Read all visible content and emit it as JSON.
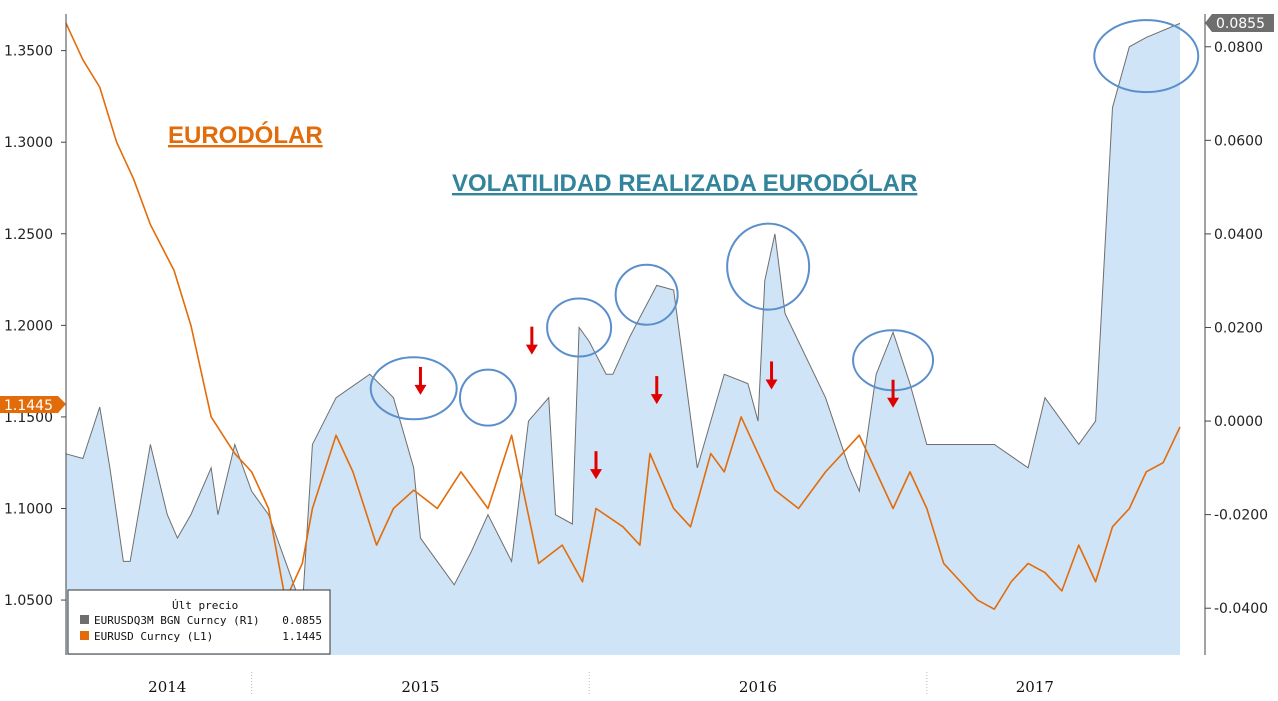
{
  "chart_data": {
    "type": "line",
    "x_ticks": [
      "2014",
      "2015",
      "2016",
      "2017"
    ],
    "left_axis": {
      "ticks": [
        "1.3500",
        "1.3000",
        "1.2500",
        "1.2000",
        "1.1500",
        "1.1000",
        "1.0500"
      ],
      "range": [
        1.02,
        1.37
      ]
    },
    "right_axis": {
      "ticks": [
        "0.0800",
        "0.0600",
        "0.0400",
        "0.0200",
        "0.0000",
        "-0.0200",
        "-0.0400"
      ],
      "range": [
        -0.05,
        0.087
      ]
    },
    "annotations": {
      "eurusd_title": "EURODÓLAR",
      "vol_title": "VOLATILIDAD REALIZADA EURODÓLAR"
    },
    "legend": {
      "header": "Últ precio",
      "rows": [
        {
          "label": "EURUSDQ3M BGN Curncy  (R1)",
          "value": "0.0855",
          "color": "#6e6e6e"
        },
        {
          "label": "EURUSD Curncy  (L1)",
          "value": "1.1445",
          "color": "#e36c0a"
        }
      ]
    },
    "last_value_tags": {
      "eurusd": "1.1445",
      "vol": "0.0855"
    },
    "series": [
      {
        "name": "EURUSD Curncy",
        "axis": "left",
        "color": "#e36c0a",
        "x": [
          2013.95,
          2014.0,
          2014.05,
          2014.1,
          2014.15,
          2014.2,
          2014.27,
          2014.32,
          2014.38,
          2014.45,
          2014.5,
          2014.55,
          2014.6,
          2014.65,
          2014.68,
          2014.75,
          2014.8,
          2014.87,
          2014.92,
          2014.98,
          2015.05,
          2015.12,
          2015.2,
          2015.27,
          2015.35,
          2015.42,
          2015.48,
          2015.52,
          2015.6,
          2015.65,
          2015.68,
          2015.75,
          2015.8,
          2015.86,
          2015.9,
          2015.95,
          2016.0,
          2016.05,
          2016.12,
          2016.2,
          2016.25,
          2016.3,
          2016.35,
          2016.4,
          2016.45,
          2016.5,
          2016.55,
          2016.6,
          2016.65,
          2016.7,
          2016.75,
          2016.8,
          2016.85,
          2016.9,
          2016.95,
          2017.0,
          2017.05,
          2017.1,
          2017.15,
          2017.2,
          2017.25
        ],
        "y": [
          1.365,
          1.345,
          1.33,
          1.3,
          1.28,
          1.255,
          1.23,
          1.2,
          1.15,
          1.13,
          1.12,
          1.1,
          1.05,
          1.07,
          1.1,
          1.14,
          1.12,
          1.08,
          1.1,
          1.11,
          1.1,
          1.12,
          1.1,
          1.14,
          1.07,
          1.08,
          1.06,
          1.1,
          1.09,
          1.08,
          1.13,
          1.1,
          1.09,
          1.13,
          1.12,
          1.15,
          1.13,
          1.11,
          1.1,
          1.12,
          1.13,
          1.14,
          1.12,
          1.1,
          1.12,
          1.1,
          1.07,
          1.06,
          1.05,
          1.045,
          1.06,
          1.07,
          1.065,
          1.055,
          1.08,
          1.06,
          1.09,
          1.1,
          1.12,
          1.125,
          1.1445
        ]
      },
      {
        "name": "EURUSDQ3M BGN Curncy",
        "axis": "right",
        "color": "#6e6e6e",
        "fill": "#cfe4f6",
        "x": [
          2013.95,
          2014.0,
          2014.05,
          2014.08,
          2014.12,
          2014.14,
          2014.2,
          2014.25,
          2014.28,
          2014.32,
          2014.38,
          2014.4,
          2014.45,
          2014.5,
          2014.55,
          2014.6,
          2014.65,
          2014.68,
          2014.75,
          2014.85,
          2014.92,
          2014.98,
          2015.0,
          2015.05,
          2015.1,
          2015.15,
          2015.2,
          2015.27,
          2015.32,
          2015.38,
          2015.4,
          2015.45,
          2015.47,
          2015.5,
          2015.55,
          2015.57,
          2015.62,
          2015.7,
          2015.75,
          2015.82,
          2015.9,
          2015.97,
          2016.0,
          2016.02,
          2016.05,
          2016.08,
          2016.2,
          2016.27,
          2016.3,
          2016.35,
          2016.4,
          2016.45,
          2016.5,
          2016.55,
          2016.6,
          2016.7,
          2016.8,
          2016.85,
          2016.95,
          2017.0,
          2017.05,
          2017.1,
          2017.15,
          2017.25
        ],
        "y": [
          -0.007,
          -0.008,
          0.003,
          -0.01,
          -0.03,
          -0.03,
          -0.005,
          -0.02,
          -0.025,
          -0.02,
          -0.01,
          -0.02,
          -0.005,
          -0.015,
          -0.02,
          -0.03,
          -0.04,
          -0.005,
          0.005,
          0.01,
          0.005,
          -0.01,
          -0.025,
          -0.03,
          -0.035,
          -0.028,
          -0.02,
          -0.03,
          0.0,
          0.005,
          -0.02,
          -0.022,
          0.02,
          0.017,
          0.01,
          0.01,
          0.018,
          0.029,
          0.028,
          -0.01,
          0.01,
          0.008,
          0.0,
          0.03,
          0.04,
          0.023,
          0.005,
          -0.01,
          -0.015,
          0.01,
          0.019,
          0.008,
          -0.005,
          -0.005,
          -0.005,
          -0.005,
          -0.01,
          0.005,
          -0.005,
          0.0,
          0.067,
          0.08,
          0.082,
          0.085
        ]
      }
    ],
    "circled_regions": [
      {
        "x": 2014.98,
        "y": 0.007
      },
      {
        "x": 2015.2,
        "y": 0.005
      },
      {
        "x": 2015.47,
        "y": 0.02
      },
      {
        "x": 2015.67,
        "y": 0.027
      },
      {
        "x": 2016.03,
        "y": 0.033
      },
      {
        "x": 2016.4,
        "y": 0.013
      },
      {
        "x": 2017.15,
        "y": 0.078
      }
    ],
    "arrows": [
      {
        "x": 2015.0,
        "y": 1.162
      },
      {
        "x": 2015.33,
        "y": 1.184
      },
      {
        "x": 2015.52,
        "y": 1.116
      },
      {
        "x": 2015.7,
        "y": 1.157
      },
      {
        "x": 2016.04,
        "y": 1.165
      },
      {
        "x": 2016.4,
        "y": 1.155
      }
    ]
  }
}
